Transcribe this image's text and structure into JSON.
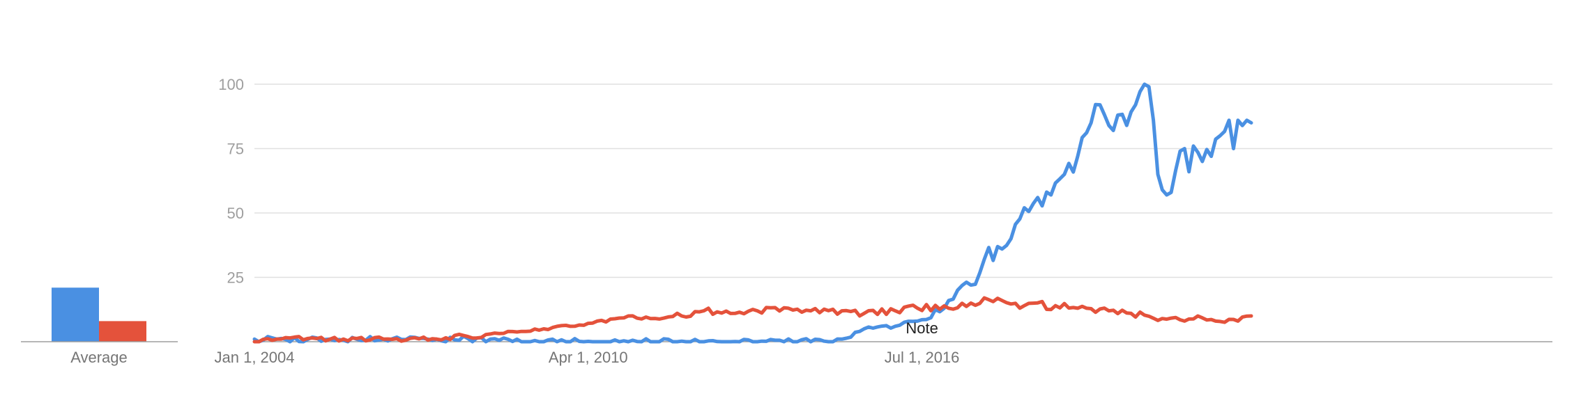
{
  "chart_data": [
    {
      "type": "bar",
      "categories": [
        "Average"
      ],
      "series": [
        {
          "color": "#4a90e2",
          "values": [
            21
          ]
        },
        {
          "color": "#e4523b",
          "values": [
            8
          ]
        }
      ],
      "ylim": [
        0,
        100
      ],
      "xlabel": "",
      "ylabel": ""
    },
    {
      "type": "line",
      "x_start": "2004-01",
      "x_end": "2020-09",
      "x_ticks": [
        "Jan 1, 2004",
        "Apr 1, 2010",
        "Jul 1, 2016"
      ],
      "y_ticks": [
        25,
        50,
        75,
        100
      ],
      "ylim": [
        0,
        100
      ],
      "grid": true,
      "xlabel": "",
      "ylabel": "",
      "annotation": {
        "text": "Note",
        "x": "2016-07"
      },
      "series": [
        {
          "color": "#4a90e2",
          "anchors": [
            [
              "2004-01",
              1
            ],
            [
              "2004-06",
              1
            ],
            [
              "2005-06",
              1
            ],
            [
              "2006-06",
              1
            ],
            [
              "2007-06",
              1
            ],
            [
              "2008-06",
              1
            ],
            [
              "2009-06",
              0
            ],
            [
              "2010-06",
              0
            ],
            [
              "2011-06",
              0
            ],
            [
              "2012-06",
              0
            ],
            [
              "2013-06",
              0
            ],
            [
              "2014-06",
              0
            ],
            [
              "2015-01",
              1
            ],
            [
              "2015-06",
              5
            ],
            [
              "2016-01",
              6
            ],
            [
              "2016-06",
              8
            ],
            [
              "2016-12",
              13
            ],
            [
              "2017-03",
              20
            ],
            [
              "2017-06",
              22
            ],
            [
              "2017-09",
              32
            ],
            [
              "2018-01",
              36
            ],
            [
              "2018-03",
              40
            ],
            [
              "2018-06",
              52
            ],
            [
              "2018-09",
              56
            ],
            [
              "2018-12",
              57
            ],
            [
              "2019-03",
              65
            ],
            [
              "2019-06",
              72
            ],
            [
              "2019-09",
              85
            ],
            [
              "2019-11",
              92
            ],
            [
              "2020-01",
              84
            ],
            [
              "2020-03",
              88
            ],
            [
              "2020-05",
              84
            ],
            [
              "2020-07",
              92
            ],
            [
              "2020-09",
              100
            ],
            [
              "2020-10",
              99
            ],
            [
              "2020-11",
              86
            ],
            [
              "2020-12",
              65
            ],
            [
              "2021-01",
              59
            ],
            [
              "2021-02",
              57
            ],
            [
              "2021-03",
              58
            ],
            [
              "2021-05",
              74
            ],
            [
              "2021-06",
              75
            ],
            [
              "2021-07",
              66
            ],
            [
              "2021-08",
              76
            ],
            [
              "2021-10",
              70
            ],
            [
              "2021-12",
              72
            ],
            [
              "2022-02",
              80
            ],
            [
              "2022-04",
              86
            ],
            [
              "2022-05",
              75
            ],
            [
              "2022-06",
              86
            ],
            [
              "2022-08",
              86
            ],
            [
              "2022-09",
              85
            ]
          ]
        },
        {
          "color": "#e4523b",
          "anchors": [
            [
              "2004-01",
              0
            ],
            [
              "2004-06",
              1
            ],
            [
              "2005-06",
              1
            ],
            [
              "2006-06",
              1
            ],
            [
              "2007-06",
              1
            ],
            [
              "2008-01",
              2
            ],
            [
              "2008-06",
              3
            ],
            [
              "2009-01",
              4
            ],
            [
              "2009-06",
              5
            ],
            [
              "2010-01",
              6
            ],
            [
              "2010-06",
              8
            ],
            [
              "2011-01",
              10
            ],
            [
              "2011-06",
              9
            ],
            [
              "2012-01",
              10
            ],
            [
              "2012-06",
              12
            ],
            [
              "2013-01",
              11
            ],
            [
              "2013-06",
              12
            ],
            [
              "2014-01",
              13
            ],
            [
              "2014-06",
              12
            ],
            [
              "2015-01",
              12
            ],
            [
              "2015-06",
              11
            ],
            [
              "2016-01",
              12
            ],
            [
              "2016-06",
              13
            ],
            [
              "2017-01",
              13
            ],
            [
              "2017-06",
              15
            ],
            [
              "2017-09",
              17
            ],
            [
              "2018-01",
              16
            ],
            [
              "2018-06",
              14
            ],
            [
              "2019-01",
              14
            ],
            [
              "2019-06",
              13
            ],
            [
              "2020-01",
              12
            ],
            [
              "2020-06",
              11
            ],
            [
              "2021-01",
              9
            ],
            [
              "2021-06",
              8
            ],
            [
              "2021-09",
              10
            ],
            [
              "2022-01",
              8
            ],
            [
              "2022-06",
              8
            ],
            [
              "2022-09",
              10
            ]
          ]
        }
      ]
    }
  ],
  "labels": {
    "average": "Average",
    "note": "Note"
  }
}
